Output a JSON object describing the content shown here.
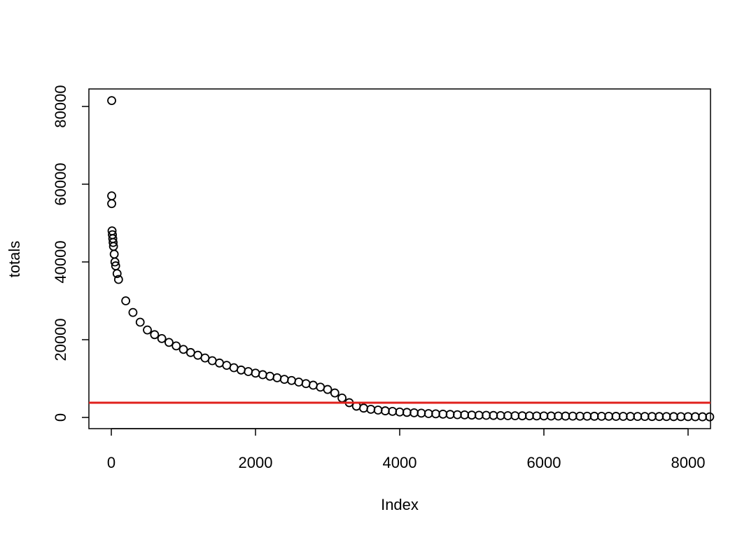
{
  "chart_data": {
    "type": "scatter",
    "x_label": "Index",
    "y_label": "totals",
    "xlim": [
      -311,
      8311
    ],
    "ylim": [
      -2880,
      84500
    ],
    "xticks": [
      0,
      2000,
      4000,
      6000,
      8000
    ],
    "yticks": [
      0,
      20000,
      40000,
      60000,
      80000
    ],
    "hline": 3780,
    "hline_color": "#e0201c",
    "series": [
      {
        "color": "#000000",
        "x": [
          5,
          5,
          5,
          10,
          15,
          20,
          25,
          30,
          40,
          50,
          60,
          80,
          100,
          200,
          300,
          400,
          500,
          600,
          700,
          800,
          900,
          1000,
          1100,
          1200,
          1300,
          1400,
          1500,
          1600,
          1700,
          1800,
          1900,
          2000,
          2100,
          2200,
          2300,
          2400,
          2500,
          2600,
          2700,
          2800,
          2900,
          3000,
          3100,
          3200,
          3300,
          3400,
          3500,
          3600,
          3700,
          3800,
          3900,
          4000,
          4100,
          4200,
          4300,
          4400,
          4500,
          4600,
          4700,
          4800,
          4900,
          5000,
          5100,
          5200,
          5300,
          5400,
          5500,
          5600,
          5700,
          5800,
          5900,
          6000,
          6100,
          6200,
          6300,
          6400,
          6500,
          6600,
          6700,
          6800,
          6900,
          7000,
          7100,
          7200,
          7300,
          7400,
          7500,
          7600,
          7700,
          7800,
          7900,
          8000,
          8100,
          8200,
          8300
        ],
        "values": [
          81500,
          57000,
          55000,
          48000,
          47000,
          46000,
          45000,
          44000,
          42000,
          40000,
          39000,
          37000,
          35500,
          30000,
          27000,
          24500,
          22500,
          21300,
          20300,
          19300,
          18400,
          17500,
          16700,
          16000,
          15300,
          14600,
          14000,
          13400,
          12800,
          12200,
          11800,
          11400,
          11000,
          10600,
          10200,
          9800,
          9500,
          9100,
          8700,
          8300,
          7800,
          7200,
          6300,
          5000,
          3800,
          2900,
          2400,
          2100,
          1900,
          1700,
          1550,
          1400,
          1300,
          1200,
          1100,
          1000,
          920,
          850,
          780,
          700,
          650,
          600,
          570,
          540,
          510,
          480,
          450,
          435,
          420,
          405,
          390,
          380,
          370,
          360,
          350,
          335,
          320,
          315,
          305,
          295,
          290,
          280,
          270,
          265,
          255,
          250,
          240,
          235,
          225,
          215,
          210,
          200,
          190,
          170,
          150
        ]
      }
    ]
  }
}
